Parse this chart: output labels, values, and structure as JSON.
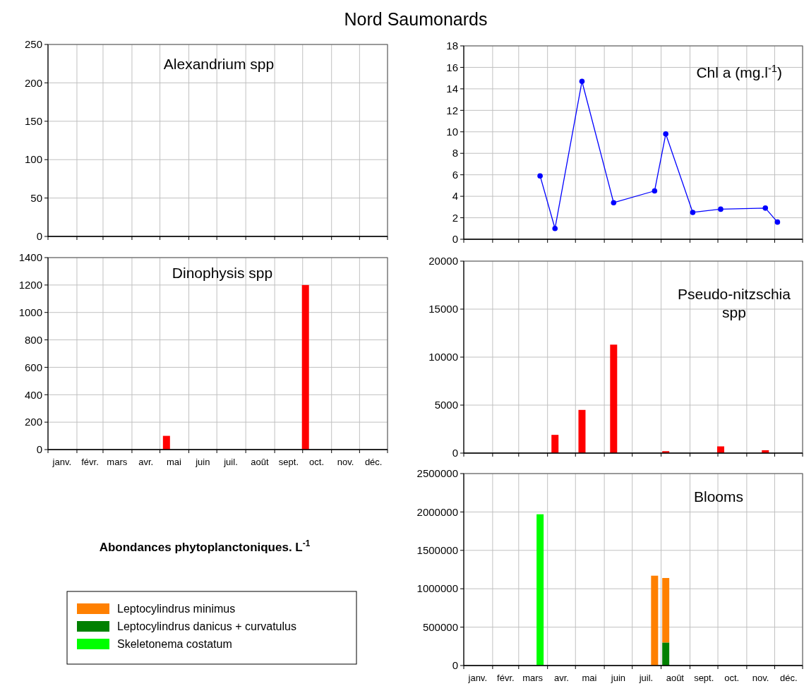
{
  "chart_data": [
    {
      "type": "other",
      "title": "Nord Saumonards",
      "annotations": [
        "Abondances phytoplanctoniques. L$^{-1}$"
      ]
    },
    {
      "type": "bar",
      "title": "Alexandrium spp",
      "xlim": [
        "--01-01",
        "--12-31"
      ],
      "xticks": [
        {
          "value": "--01-01",
          "label": null
        },
        {
          "value": "--02-01",
          "label": null
        },
        {
          "value": "--03-01",
          "label": null
        },
        {
          "value": "--04-01",
          "label": null
        },
        {
          "value": "--05-01",
          "label": null
        },
        {
          "value": "--06-01",
          "label": null
        },
        {
          "value": "--07-01",
          "label": null
        },
        {
          "value": "--08-01",
          "label": null
        },
        {
          "value": "--09-01",
          "label": null
        },
        {
          "value": "--10-01",
          "label": null
        },
        {
          "value": "--11-01",
          "label": null
        },
        {
          "value": "--12-01",
          "label": null
        },
        {
          "value": "--12-31",
          "label": null
        }
      ],
      "ylim": [
        0,
        250
      ],
      "yticks": [
        0,
        50,
        100,
        150,
        200,
        250
      ],
      "grid": true,
      "tick_labels": "y"
    },
    {
      "type": "line",
      "title": "Chl a (mg.l$^{-1}$)",
      "xlim": [
        "--01-01",
        "--12-31"
      ],
      "xticks": [
        {
          "value": "--01-01",
          "label": null
        },
        {
          "value": "--02-01",
          "label": null
        },
        {
          "value": "--03-01",
          "label": null
        },
        {
          "value": "--04-01",
          "label": null
        },
        {
          "value": "--05-01",
          "label": null
        },
        {
          "value": "--06-01",
          "label": null
        },
        {
          "value": "--07-01",
          "label": null
        },
        {
          "value": "--08-01",
          "label": null
        },
        {
          "value": "--09-01",
          "label": null
        },
        {
          "value": "--10-01",
          "label": null
        },
        {
          "value": "--11-01",
          "label": null
        },
        {
          "value": "--12-01",
          "label": null
        },
        {
          "value": "--12-31",
          "label": null
        }
      ],
      "ylim": [
        0,
        18
      ],
      "yticks": [
        0,
        2,
        4,
        6,
        8,
        10,
        12,
        14,
        16,
        18
      ],
      "grid": true,
      "tick_labels": "y",
      "marker": "circle",
      "line_style": "solid",
      "series": [
        {
          "color": "#0000ff",
          "x": [
            "--03-24",
            "--04-09",
            "--05-08",
            "--06-11",
            "--07-25",
            "--08-06",
            "--09-04",
            "--10-04",
            "--11-21",
            "--12-04"
          ],
          "values": [
            5.9,
            1.0,
            14.7,
            3.4,
            4.5,
            9.8,
            2.5,
            2.8,
            2.9,
            1.6
          ]
        }
      ]
    },
    {
      "type": "bar",
      "title": "Dinophysis spp",
      "xlim": [
        "--01-01",
        "--12-31"
      ],
      "xticks": [
        {
          "value": "--01-01",
          "label": null
        },
        {
          "value": "--01-16",
          "label": "janv."
        },
        {
          "value": "--02-01",
          "label": null
        },
        {
          "value": "--02-15",
          "label": "févr."
        },
        {
          "value": "--03-01",
          "label": null
        },
        {
          "value": "--03-16",
          "label": "mars"
        },
        {
          "value": "--04-01",
          "label": null
        },
        {
          "value": "--04-16",
          "label": "avr."
        },
        {
          "value": "--05-01",
          "label": null
        },
        {
          "value": "--05-16",
          "label": "mai"
        },
        {
          "value": "--06-01",
          "label": null
        },
        {
          "value": "--06-16",
          "label": "juin"
        },
        {
          "value": "--07-01",
          "label": null
        },
        {
          "value": "--07-16",
          "label": "juil."
        },
        {
          "value": "--08-01",
          "label": null
        },
        {
          "value": "--08-16",
          "label": "août"
        },
        {
          "value": "--09-01",
          "label": null
        },
        {
          "value": "--09-16",
          "label": "sept."
        },
        {
          "value": "--10-01",
          "label": null
        },
        {
          "value": "--10-16",
          "label": "oct."
        },
        {
          "value": "--11-01",
          "label": null
        },
        {
          "value": "--11-16",
          "label": "nov."
        },
        {
          "value": "--12-01",
          "label": null
        },
        {
          "value": "--12-16",
          "label": "déc."
        },
        {
          "value": "--12-31",
          "label": null
        }
      ],
      "ylim": [
        0,
        1400
      ],
      "yticks": [
        0,
        200,
        400,
        600,
        800,
        1000,
        1200,
        1400
      ],
      "grid": true,
      "series": [
        {
          "color": "#ff0000",
          "x": [
            "--05-08",
            "--10-04"
          ],
          "values": [
            100,
            1200
          ]
        }
      ]
    },
    {
      "type": "bar",
      "title": "Pseudo-nitzschia spp",
      "xlim": [
        "--01-01",
        "--12-31"
      ],
      "xticks": [
        {
          "value": "--01-01",
          "label": null
        },
        {
          "value": "--02-01",
          "label": null
        },
        {
          "value": "--03-01",
          "label": null
        },
        {
          "value": "--04-01",
          "label": null
        },
        {
          "value": "--05-01",
          "label": null
        },
        {
          "value": "--06-01",
          "label": null
        },
        {
          "value": "--07-01",
          "label": null
        },
        {
          "value": "--08-01",
          "label": null
        },
        {
          "value": "--09-01",
          "label": null
        },
        {
          "value": "--10-01",
          "label": null
        },
        {
          "value": "--11-01",
          "label": null
        },
        {
          "value": "--12-01",
          "label": null
        },
        {
          "value": "--12-31",
          "label": null
        }
      ],
      "ylim": [
        0,
        20000
      ],
      "yticks": [
        0,
        5000,
        10000,
        15000,
        20000
      ],
      "grid": true,
      "tick_labels": "y",
      "series": [
        {
          "color": "#ff0000",
          "x": [
            "--04-09",
            "--05-08",
            "--06-11",
            "--08-06",
            "--10-04",
            "--11-21"
          ],
          "values": [
            1900,
            4500,
            11300,
            200,
            700,
            300
          ]
        }
      ]
    },
    {
      "type": "bar",
      "title": "Blooms",
      "stacked": true,
      "legend": "left",
      "xlim": [
        "--01-01",
        "--12-31"
      ],
      "xticks": [
        {
          "value": "--01-01",
          "label": null
        },
        {
          "value": "--01-16",
          "label": "janv."
        },
        {
          "value": "--02-01",
          "label": null
        },
        {
          "value": "--02-15",
          "label": "févr."
        },
        {
          "value": "--03-01",
          "label": null
        },
        {
          "value": "--03-16",
          "label": "mars"
        },
        {
          "value": "--04-01",
          "label": null
        },
        {
          "value": "--04-16",
          "label": "avr."
        },
        {
          "value": "--05-01",
          "label": null
        },
        {
          "value": "--05-16",
          "label": "mai"
        },
        {
          "value": "--06-01",
          "label": null
        },
        {
          "value": "--06-16",
          "label": "juin"
        },
        {
          "value": "--07-01",
          "label": null
        },
        {
          "value": "--07-16",
          "label": "juil."
        },
        {
          "value": "--08-01",
          "label": null
        },
        {
          "value": "--08-16",
          "label": "août"
        },
        {
          "value": "--09-01",
          "label": null
        },
        {
          "value": "--09-16",
          "label": "sept."
        },
        {
          "value": "--10-01",
          "label": null
        },
        {
          "value": "--10-16",
          "label": "oct."
        },
        {
          "value": "--11-01",
          "label": null
        },
        {
          "value": "--11-16",
          "label": "nov."
        },
        {
          "value": "--12-01",
          "label": null
        },
        {
          "value": "--12-16",
          "label": "déc."
        },
        {
          "value": "--12-31",
          "label": null
        }
      ],
      "ylim": [
        0,
        2500000
      ],
      "yticks": [
        0,
        500000,
        1000000,
        1500000,
        2000000,
        2500000
      ],
      "grid": true,
      "x": [
        "--03-24",
        "--07-25",
        "--08-06"
      ],
      "series": [
        {
          "name": "Skeletonema costatum",
          "color": "#00ff00",
          "values": [
            1970000,
            null,
            null
          ]
        },
        {
          "name": "Leptocylindrus danicus + curvatulus",
          "color": "#008000",
          "values": [
            null,
            null,
            300000
          ]
        },
        {
          "name": "Leptocylindrus minimus",
          "color": "#ff8000",
          "values": [
            null,
            1170000,
            840000
          ]
        }
      ]
    }
  ]
}
